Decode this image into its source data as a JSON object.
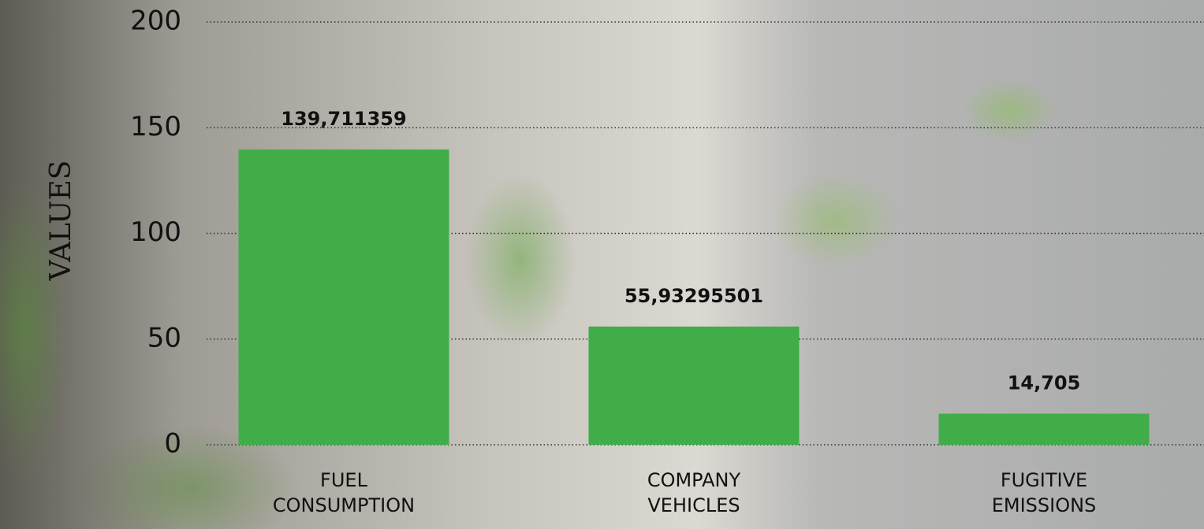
{
  "chart_data": {
    "type": "bar",
    "y_label": "VALUES",
    "categories": [
      "FUEL CONSUMPTION",
      "COMPANY VEHICLES",
      "FUGITIVE EMISSIONS"
    ],
    "values": [
      139.711359,
      55.93295501,
      14.705
    ],
    "value_labels": [
      "139,711359",
      "55,93295501",
      "14,705"
    ],
    "color": "#41ad49",
    "ylim": [
      0,
      200
    ],
    "yticks": [
      0,
      50,
      100,
      150,
      200
    ],
    "grid": true
  }
}
